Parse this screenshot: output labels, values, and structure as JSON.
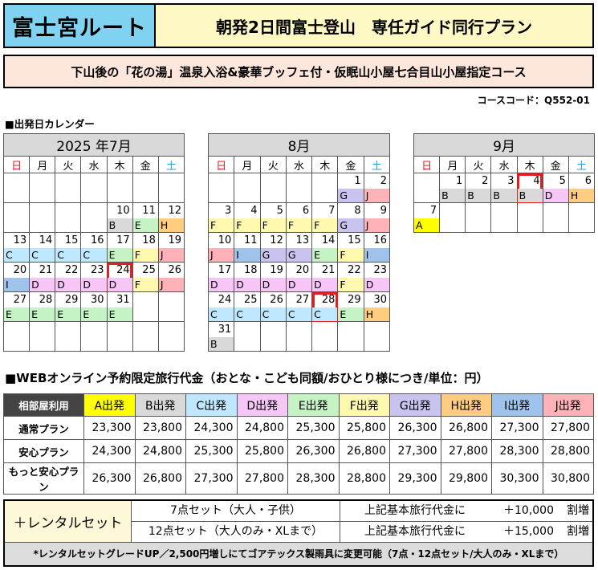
{
  "header": {
    "route": "富士宮ルート",
    "title": "朝発2日間富士登山　専任ガイド同行プラン",
    "subtitle": "下山後の「花の湯」温泉入浴&豪華ブッフェ付・仮眠山小屋七合目山小屋指定コース",
    "course_code": "コースコード：Q552-01"
  },
  "calendar_section_title": "■出発日カレンダー",
  "weekdays": [
    "日",
    "月",
    "火",
    "水",
    "木",
    "金",
    "土"
  ],
  "calendars": [
    {
      "month": "2025 年7月",
      "weeks": [
        [
          {
            "d": ""
          },
          {
            "d": ""
          },
          {
            "d": ""
          },
          {
            "d": ""
          },
          {
            "d": ""
          },
          {
            "d": ""
          },
          {
            "d": ""
          }
        ],
        [
          {
            "d": ""
          },
          {
            "d": ""
          },
          {
            "d": ""
          },
          {
            "d": ""
          },
          {
            "d": "10",
            "c": "B"
          },
          {
            "d": "11",
            "c": "E"
          },
          {
            "d": "12",
            "c": "H"
          }
        ],
        [
          {
            "d": "13",
            "c": "C"
          },
          {
            "d": "14",
            "c": "C"
          },
          {
            "d": "15",
            "c": "C"
          },
          {
            "d": "16",
            "c": "C"
          },
          {
            "d": "17",
            "c": "E"
          },
          {
            "d": "18",
            "c": "F"
          },
          {
            "d": "19",
            "c": "J"
          }
        ],
        [
          {
            "d": "20",
            "c": "I"
          },
          {
            "d": "21",
            "c": "D"
          },
          {
            "d": "22",
            "c": "D"
          },
          {
            "d": "23",
            "c": "D"
          },
          {
            "d": "24",
            "c": "D",
            "hl": true
          },
          {
            "d": "25",
            "c": "F"
          },
          {
            "d": "26",
            "c": "J"
          }
        ],
        [
          {
            "d": "27",
            "c": "E"
          },
          {
            "d": "28",
            "c": "E"
          },
          {
            "d": "29",
            "c": "E"
          },
          {
            "d": "30",
            "c": "E"
          },
          {
            "d": "31",
            "c": "E"
          },
          {
            "d": ""
          },
          {
            "d": ""
          }
        ],
        [
          {
            "d": ""
          },
          {
            "d": ""
          },
          {
            "d": ""
          },
          {
            "d": ""
          },
          {
            "d": ""
          },
          {
            "d": ""
          },
          {
            "d": ""
          }
        ]
      ]
    },
    {
      "month": "8月",
      "weeks": [
        [
          {
            "d": ""
          },
          {
            "d": ""
          },
          {
            "d": ""
          },
          {
            "d": ""
          },
          {
            "d": ""
          },
          {
            "d": "1",
            "c": "G"
          },
          {
            "d": "2",
            "c": "J"
          }
        ],
        [
          {
            "d": "3",
            "c": "F"
          },
          {
            "d": "4",
            "c": "F"
          },
          {
            "d": "5",
            "c": "F"
          },
          {
            "d": "6",
            "c": "F"
          },
          {
            "d": "7",
            "c": "F"
          },
          {
            "d": "8",
            "c": "G"
          },
          {
            "d": "9",
            "c": "J"
          }
        ],
        [
          {
            "d": "10",
            "c": "J"
          },
          {
            "d": "11",
            "c": "I"
          },
          {
            "d": "12",
            "c": "G"
          },
          {
            "d": "13",
            "c": "G"
          },
          {
            "d": "14",
            "c": "E"
          },
          {
            "d": "15",
            "c": "F"
          },
          {
            "d": "16",
            "c": "I"
          }
        ],
        [
          {
            "d": "17",
            "c": "D"
          },
          {
            "d": "18",
            "c": "D"
          },
          {
            "d": "19",
            "c": "D"
          },
          {
            "d": "20",
            "c": "D"
          },
          {
            "d": "21",
            "c": "D"
          },
          {
            "d": "22",
            "c": "F"
          },
          {
            "d": "23",
            "c": "D"
          }
        ],
        [
          {
            "d": "24",
            "c": "C"
          },
          {
            "d": "25",
            "c": "C"
          },
          {
            "d": "26",
            "c": "C"
          },
          {
            "d": "27",
            "c": "C"
          },
          {
            "d": "28",
            "c": "C",
            "hl": true
          },
          {
            "d": "29",
            "c": "E"
          },
          {
            "d": "30",
            "c": "H"
          }
        ],
        [
          {
            "d": "31",
            "c": "B"
          },
          {
            "d": ""
          },
          {
            "d": ""
          },
          {
            "d": ""
          },
          {
            "d": ""
          },
          {
            "d": ""
          },
          {
            "d": ""
          }
        ]
      ]
    },
    {
      "month": "9月",
      "weeks": [
        [
          {
            "d": ""
          },
          {
            "d": "1",
            "c": "B"
          },
          {
            "d": "2",
            "c": "B"
          },
          {
            "d": "3",
            "c": "B"
          },
          {
            "d": "4",
            "c": "B",
            "hl": true
          },
          {
            "d": "5",
            "c": "D"
          },
          {
            "d": "6",
            "c": "H"
          }
        ],
        [
          {
            "d": "7",
            "c": "A"
          },
          {
            "d": ""
          },
          {
            "d": ""
          },
          {
            "d": ""
          },
          {
            "d": ""
          },
          {
            "d": ""
          },
          {
            "d": ""
          }
        ]
      ]
    }
  ],
  "code_colors": {
    "A": "#ffff00",
    "B": "#d9d9d9",
    "C": "#bfe8ff",
    "D": "#f6c6f6",
    "E": "#c6f3c6",
    "F": "#fff9b0",
    "G": "#c9c3f0",
    "H": "#ffcc80",
    "I": "#9fc3ea",
    "J": "#ffb3b8"
  },
  "price_section_title": "■WEBオンライン予約限定旅行代金（おとな・こども同額/おひとり様につき/単位：円）",
  "price_table": {
    "corner": "相部屋利用",
    "columns": [
      "A出発",
      "B出発",
      "C出発",
      "D出発",
      "E出発",
      "F出発",
      "G出発",
      "H出発",
      "I出発",
      "J出発"
    ],
    "column_codes": [
      "A",
      "B",
      "C",
      "D",
      "E",
      "F",
      "G",
      "H",
      "I",
      "J"
    ],
    "rows": [
      {
        "label": "通常プラン",
        "values": [
          "23,300",
          "23,800",
          "24,300",
          "24,800",
          "25,300",
          "25,800",
          "26,300",
          "26,800",
          "27,300",
          "27,800"
        ]
      },
      {
        "label": "安心プラン",
        "values": [
          "24,300",
          "24,800",
          "25,300",
          "25,800",
          "26,300",
          "26,800",
          "27,300",
          "27,800",
          "28,300",
          "28,800"
        ]
      },
      {
        "label": "もっと安心プラン",
        "values": [
          "26,300",
          "26,800",
          "27,300",
          "27,800",
          "28,300",
          "28,800",
          "29,300",
          "29,800",
          "30,300",
          "30,800"
        ]
      }
    ]
  },
  "rental": {
    "label": "＋レンタルセット",
    "items": [
      {
        "set": "7点セット（大人・子供）",
        "fee_label": "上記基本旅行代金に",
        "amount": "＋10,000",
        "suffix": "割増"
      },
      {
        "set": "12点セット（大人のみ・XLまで）",
        "fee_label": "上記基本旅行代金に",
        "amount": "＋15,000",
        "suffix": "割増"
      }
    ],
    "note": "*レンタルセットグレードUP／2,500円増しにてゴアテックス製雨具に変更可能（7点・12点セット/大人のみ・XLまで）"
  }
}
